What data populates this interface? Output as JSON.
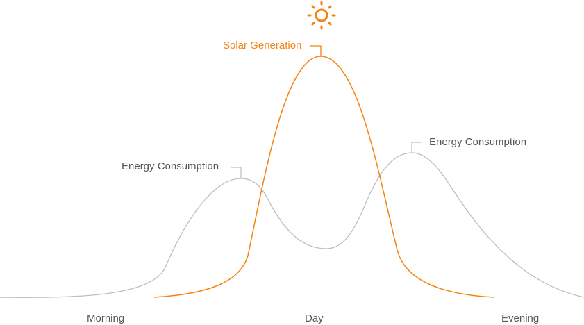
{
  "colors": {
    "solar": "#f5820d",
    "consumption": "#bdbdbd",
    "text": "#555555"
  },
  "labels": {
    "solar": "Solar Generation",
    "consumption_morning": "Energy Consumption",
    "consumption_evening": "Energy Consumption"
  },
  "x_axis": [
    "Morning",
    "Day",
    "Evening"
  ],
  "icon": "sun-icon"
}
